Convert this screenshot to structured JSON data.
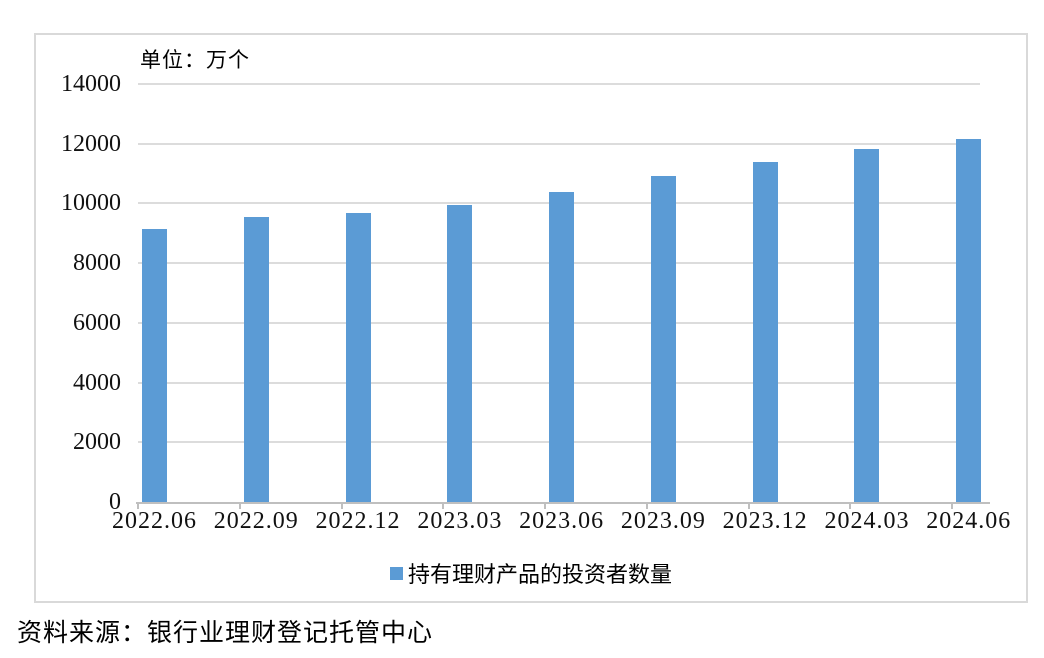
{
  "chart_data": {
    "type": "bar",
    "title": "",
    "unit_label": "单位：万个",
    "series_name": "持有理财产品的投资者数量",
    "categories": [
      "2022.06",
      "2022.09",
      "2022.12",
      "2023.03",
      "2023.06",
      "2023.09",
      "2023.12",
      "2024.03",
      "2024.06"
    ],
    "values": [
      9140,
      9560,
      9670,
      9940,
      10380,
      10920,
      11390,
      11830,
      12160
    ],
    "xlabel": "",
    "ylabel": "",
    "ylim": [
      0,
      14000
    ],
    "yticks": [
      0,
      2000,
      4000,
      6000,
      8000,
      10000,
      12000,
      14000
    ],
    "grid": "horizontal",
    "legend_position": "bottom",
    "bar_color": "#5B9BD5"
  },
  "legend": {
    "label": "持有理财产品的投资者数量",
    "marker": "square-icon",
    "marker_color": "#5B9BD5"
  },
  "source_note": "资料来源：银行业理财登记托管中心",
  "colors": {
    "bar": "#5B9BD5",
    "gridline": "#DCDCDC",
    "axis": "#BFBFBF",
    "frame_border": "#D9D9D9",
    "text": "#111111",
    "background": "#FFFFFF"
  }
}
